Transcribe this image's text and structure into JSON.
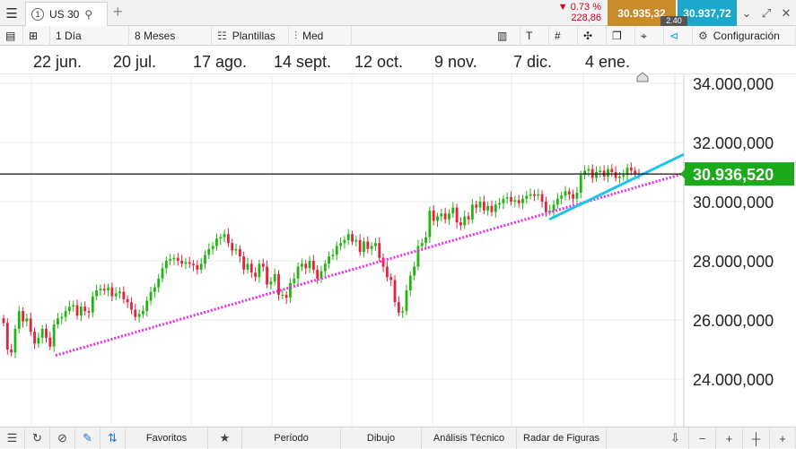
{
  "tabbar": {
    "tab_number": "1",
    "tab_label": "US 30",
    "add_label": "+",
    "change_pct": "▼ 0.73 %",
    "change_pts": "228,86",
    "sell_price": "30.935,32",
    "spread": "2.40",
    "buy_price": "30.937,72"
  },
  "toolbar": {
    "interval": "1 Día",
    "range": "8 Meses",
    "templates": "Plantillas",
    "chart_style": "Med",
    "settings": "Configuración"
  },
  "dates": [
    "22 jun.",
    "20 jul.",
    "17 ago.",
    "14 sept.",
    "12 oct.",
    "9 nov.",
    "7 dic.",
    "4 ene."
  ],
  "bottombar": {
    "favorites": "Favoritos",
    "period": "Período",
    "drawing": "Dibujo",
    "technical": "Análisis Técnico",
    "shapes": "Radar de Figuras"
  },
  "colors": {
    "up": "#22b511",
    "down": "#e8213a",
    "price_label": "#1aaa1a",
    "trend_magenta": "#e830e8",
    "trend_cyan": "#1ec3f0",
    "sell_bg": "#c98a2a",
    "buy_bg": "#1ea7cb"
  },
  "chart_data": {
    "type": "candlestick",
    "instrument": "US 30",
    "x_tick_labels": [
      "22 jun.",
      "20 jul.",
      "17 ago.",
      "14 sept.",
      "12 oct.",
      "9 nov.",
      "7 dic.",
      "4 ene."
    ],
    "y_tick_labels": [
      "34.000,000",
      "32.000,000",
      "30.000,000",
      "28.000,000",
      "26.000,000",
      "24.000,000"
    ],
    "y_ticks": [
      34000,
      32000,
      30000,
      28000,
      26000,
      24000
    ],
    "y_tick_display": [
      "34.000,000",
      "32.000,000",
      "30.000,000",
      "28.000,000",
      "26.000,000",
      "24.000,000"
    ],
    "ylim": [
      22000,
      34600
    ],
    "current_price": 30936.52,
    "current_price_label": "30.936,520",
    "grid": true,
    "closes": [
      25900,
      25000,
      24900,
      25700,
      26300,
      25950,
      26050,
      25600,
      25200,
      25400,
      25700,
      25400,
      25100,
      25850,
      26050,
      26100,
      26300,
      26450,
      26500,
      26150,
      26450,
      26300,
      26250,
      26800,
      27000,
      27050,
      27000,
      27100,
      26800,
      26900,
      26950,
      26700,
      26600,
      26350,
      26100,
      26200,
      26300,
      26650,
      26950,
      27100,
      27400,
      27750,
      28000,
      28050,
      28100,
      28000,
      27900,
      27950,
      27900,
      27850,
      27700,
      27900,
      28200,
      28400,
      28500,
      28750,
      28800,
      28900,
      28600,
      28350,
      28400,
      28150,
      27700,
      27900,
      27600,
      27450,
      27900,
      27800,
      27200,
      27300,
      27550,
      26850,
      26850,
      26750,
      27250,
      27400,
      27800,
      27900,
      27750,
      28000,
      27700,
      27400,
      27650,
      27900,
      28150,
      28200,
      28500,
      28600,
      28700,
      28900,
      28650,
      28700,
      28300,
      28650,
      28400,
      28500,
      28600,
      28100,
      27800,
      27450,
      27350,
      26600,
      26250,
      26300,
      27000,
      27500,
      27800,
      28500,
      28600,
      28800,
      29700,
      29350,
      29500,
      29600,
      29400,
      29600,
      29800,
      29300,
      29200,
      29500,
      29400,
      29900,
      29800,
      30000,
      29700,
      29850,
      29650,
      29900,
      29950,
      30100,
      30150,
      30000,
      30050,
      29950,
      30100,
      30200,
      30250,
      30200,
      30250,
      30000,
      29650,
      29700,
      29900,
      30100,
      30200,
      30350,
      30250,
      30100,
      30300,
      30900,
      31050,
      31100,
      30800,
      31000,
      31050,
      30850,
      31100,
      31000,
      30800,
      30850,
      30900,
      31150,
      31050,
      30950,
      30940
    ],
    "trendlines": [
      {
        "color": "magenta",
        "style": "dotted",
        "from": {
          "x": "22 jun.",
          "y": 24800
        },
        "to": {
          "x": "right-edge",
          "y": 30950
        }
      },
      {
        "color": "cyan",
        "style": "solid",
        "from": {
          "x": "7 dic.",
          "y": 29400
        },
        "to": {
          "x": "right-edge",
          "y": 31600
        }
      }
    ],
    "horizontal_line": 30936.52
  }
}
